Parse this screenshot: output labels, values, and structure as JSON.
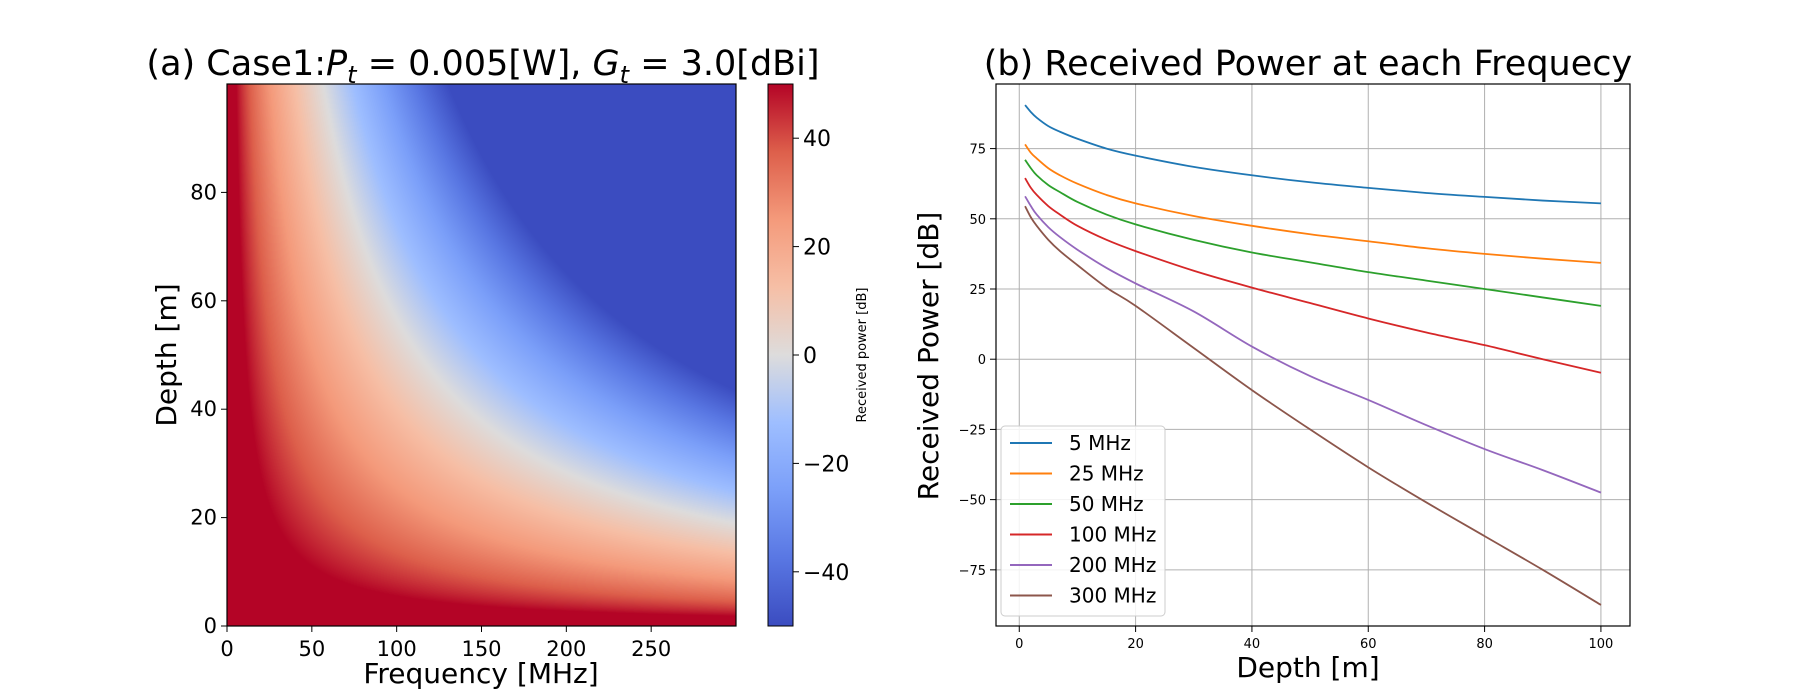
{
  "chart_data": [
    {
      "type": "heatmap",
      "title_prefix": "(a) Case1:",
      "title_pt_symbol": "P",
      "title_pt_sub": "t",
      "title_pt_value": " = 0.005[W], ",
      "title_gt_symbol": "G",
      "title_gt_sub": "t",
      "title_gt_value": " = 3.0[dBi]",
      "xlabel": "Frequency [MHz]",
      "ylabel": "Depth [m]",
      "xlim": [
        0,
        300
      ],
      "ylim": [
        0,
        100
      ],
      "xticks": [
        "0",
        "50",
        "100",
        "150",
        "200",
        "250"
      ],
      "yticks": [
        "0",
        "20",
        "40",
        "60",
        "80"
      ],
      "colorbar": {
        "label": "Received power [dB]",
        "range": [
          -50,
          50
        ],
        "ticks": [
          "40",
          "20",
          "0",
          "−20",
          "−40"
        ],
        "colormap": "coolwarm"
      },
      "model": {
        "description_free": true,
        "pt_w": 0.005,
        "gt_dbi": 3.0
      }
    },
    {
      "type": "line",
      "title": "(b) Received Power at each Frequecy",
      "xlabel": "Depth [m]",
      "ylabel": "Received Power [dB]",
      "xlim": [
        -4,
        105
      ],
      "ylim": [
        -95,
        98
      ],
      "xticks": [
        "0",
        "20",
        "40",
        "60",
        "80",
        "100"
      ],
      "yticks": [
        "75",
        "50",
        "25",
        "0",
        "−25",
        "−50",
        "−75"
      ],
      "grid": true,
      "legend_position": "bottom-left",
      "x": [
        1,
        2,
        3,
        5,
        7,
        10,
        15,
        20,
        30,
        40,
        50,
        60,
        70,
        80,
        90,
        100
      ],
      "series": [
        {
          "name": "5 MHz",
          "color": "#1f77b4",
          "values": [
            90.5,
            88,
            86,
            83,
            81,
            78.5,
            75,
            72.5,
            68.5,
            65.5,
            63,
            61,
            59.2,
            57.8,
            56.5,
            55.5
          ]
        },
        {
          "name": "25 MHz",
          "color": "#ff7f0e",
          "values": [
            76.5,
            73.5,
            71.5,
            68,
            65.5,
            62.5,
            58.5,
            55.5,
            51,
            47.5,
            44.5,
            42,
            39.5,
            37.5,
            35.8,
            34.3
          ]
        },
        {
          "name": "50 MHz",
          "color": "#2ca02c",
          "values": [
            71,
            68,
            65.5,
            62,
            59.5,
            56,
            51.5,
            48,
            42.5,
            38,
            34.5,
            31,
            28,
            25,
            22,
            19
          ]
        },
        {
          "name": "100 MHz",
          "color": "#d62728",
          "values": [
            64.5,
            61,
            58.5,
            54.5,
            51.5,
            47.5,
            42.5,
            38.5,
            31.5,
            25.5,
            20,
            14.5,
            9.5,
            5,
            0,
            -4.8
          ]
        },
        {
          "name": "200 MHz",
          "color": "#9467bd",
          "values": [
            58,
            54.5,
            51.5,
            47,
            43.5,
            39,
            32.5,
            27,
            17,
            4.5,
            -6,
            -14.5,
            -23.5,
            -32,
            -39.5,
            -47.5
          ]
        },
        {
          "name": "300 MHz",
          "color": "#8c564b",
          "values": [
            54.5,
            50.5,
            47.5,
            42.5,
            38.5,
            33.5,
            25.5,
            19,
            4,
            -11,
            -25,
            -38.5,
            -51,
            -63,
            -75,
            -87.5
          ]
        }
      ]
    }
  ]
}
